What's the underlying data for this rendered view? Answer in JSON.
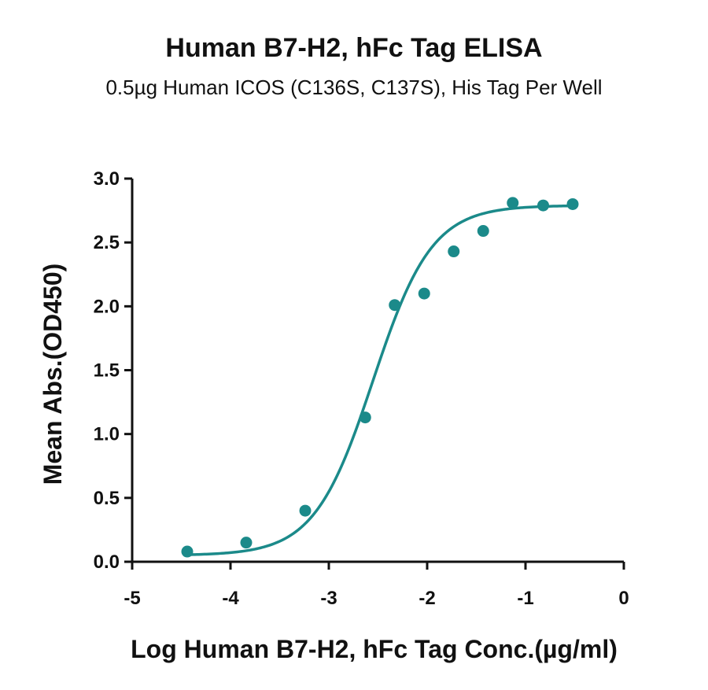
{
  "chart_data": {
    "type": "scatter",
    "title": "Human B7-H2, hFc Tag ELISA",
    "subtitle": "0.5µg Human ICOS (C136S, C137S), His Tag Per Well",
    "xlabel": "Log Human B7-H2, hFc Tag Conc.(µg/ml)",
    "ylabel": "Mean Abs.(OD450)",
    "xlim": [
      -5,
      0
    ],
    "ylim": [
      0,
      3.0
    ],
    "x_ticks": [
      "-5",
      "-4",
      "-3",
      "-2",
      "-1",
      "0"
    ],
    "y_ticks": [
      "0.0",
      "0.5",
      "1.0",
      "1.5",
      "2.0",
      "2.5",
      "3.0"
    ],
    "grid": false,
    "color": "#1b8a8a",
    "series": [
      {
        "points": [
          {
            "x": -4.44,
            "y": 0.08
          },
          {
            "x": -3.84,
            "y": 0.15
          },
          {
            "x": -3.24,
            "y": 0.4
          },
          {
            "x": -2.63,
            "y": 1.13
          },
          {
            "x": -2.33,
            "y": 2.01
          },
          {
            "x": -2.03,
            "y": 2.1
          },
          {
            "x": -1.73,
            "y": 2.43
          },
          {
            "x": -1.43,
            "y": 2.59
          },
          {
            "x": -1.13,
            "y": 2.81
          },
          {
            "x": -0.82,
            "y": 2.79
          },
          {
            "x": -0.52,
            "y": 2.8
          }
        ],
        "fit": {
          "model": "four-parameter logistic",
          "bottom": 0.05,
          "top": 2.79,
          "logEC50": -2.55,
          "hill": 1.45
        }
      }
    ]
  }
}
